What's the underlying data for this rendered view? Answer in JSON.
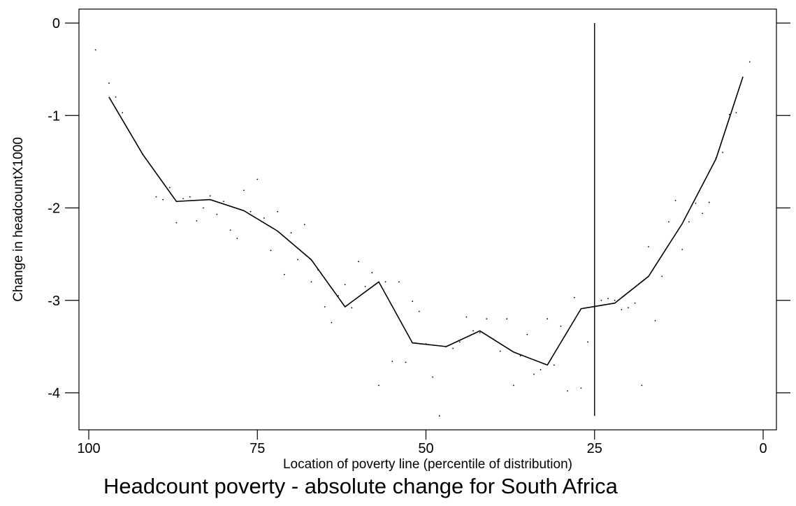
{
  "chart_data": {
    "type": "line",
    "title": "Headcount poverty - absolute change for South Africa",
    "xlabel": "Location of poverty line (percentile of distribution)",
    "ylabel": "Change in headcountX1000",
    "xlim": [
      100,
      0
    ],
    "ylim": [
      -4.4,
      0.17
    ],
    "x_reversed": true,
    "x_ticks": [
      100,
      75,
      50,
      25,
      0
    ],
    "y_ticks": [
      0,
      -1,
      -2,
      -3,
      -4
    ],
    "grid": false,
    "legend": "none",
    "reference_line": {
      "x": 25,
      "y_from": -4.25,
      "y_to": 0
    },
    "series": [
      {
        "type": "line",
        "color": "#000000",
        "x": [
          97,
          92,
          87,
          82,
          77,
          72,
          67,
          62,
          57,
          52,
          47,
          42,
          37,
          32,
          27,
          22,
          17,
          12,
          7,
          3
        ],
        "y": [
          -0.8,
          -1.42,
          -1.93,
          -1.91,
          -2.03,
          -2.25,
          -2.56,
          -3.07,
          -2.8,
          -3.46,
          -3.5,
          -3.33,
          -3.56,
          -3.7,
          -3.09,
          -3.03,
          -2.74,
          -2.17,
          -1.47,
          -0.58
        ]
      },
      {
        "type": "scatter",
        "color": "#000000",
        "x": [
          99,
          97,
          96,
          95,
          93,
          92,
          90,
          89,
          88,
          87,
          86,
          85,
          84,
          83,
          82,
          81,
          80,
          79,
          78,
          77,
          76,
          75,
          74,
          73,
          72,
          71,
          70,
          69,
          68,
          67,
          66,
          65,
          64,
          63,
          62,
          61,
          60,
          59,
          58,
          57,
          56,
          55,
          54,
          53,
          52,
          51,
          50,
          49,
          48,
          47,
          46,
          45,
          44,
          43,
          42,
          41,
          40,
          39,
          38,
          37,
          36,
          35,
          34,
          33,
          32,
          31,
          30,
          29,
          28,
          27,
          26,
          25,
          24,
          23,
          22,
          21,
          20,
          19,
          18,
          17,
          16,
          15,
          14,
          13,
          12,
          11,
          10,
          9,
          8,
          7,
          6,
          5,
          4,
          2
        ],
        "y": [
          -0.29,
          -0.65,
          -0.8,
          -0.97,
          -1.29,
          -1.42,
          -1.88,
          -1.91,
          -1.78,
          -2.16,
          -1.9,
          -1.88,
          -2.14,
          -2.0,
          -1.87,
          -2.07,
          -1.93,
          -2.24,
          -2.33,
          -1.81,
          -2.04,
          -1.69,
          -2.11,
          -2.46,
          -2.04,
          -2.72,
          -2.27,
          -2.56,
          -2.18,
          -2.8,
          -2.67,
          -3.07,
          -3.24,
          -2.95,
          -2.83,
          -3.08,
          -2.58,
          -2.85,
          -2.7,
          -3.92,
          -2.8,
          -3.66,
          -2.8,
          -3.67,
          -3.01,
          -3.12,
          -3.47,
          -3.83,
          -4.25,
          -3.5,
          -3.52,
          -3.45,
          -3.18,
          -3.33,
          -3.35,
          -3.2,
          -3.42,
          -3.55,
          -3.2,
          -3.92,
          -3.6,
          -3.37,
          -3.8,
          -3.75,
          -3.2,
          -3.7,
          -3.28,
          -3.98,
          -2.97,
          -3.95,
          -3.45,
          -3.08,
          -3.0,
          -2.98,
          -3.0,
          -3.1,
          -3.08,
          -3.03,
          -3.92,
          -2.42,
          -3.22,
          -2.74,
          -2.15,
          -1.92,
          -2.45,
          -2.15,
          -1.95,
          -2.06,
          -1.94,
          -1.46,
          -1.4,
          -0.99,
          -0.97,
          -0.42
        ]
      }
    ]
  }
}
